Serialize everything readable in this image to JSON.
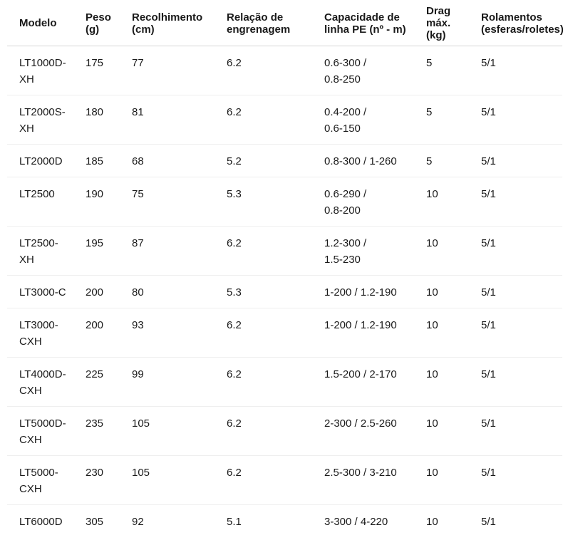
{
  "table": {
    "columns": [
      {
        "label": "Modelo"
      },
      {
        "label": "Peso\n(g)"
      },
      {
        "label": "Recolhimento\n(cm)"
      },
      {
        "label": "Relação de\nengrenagem"
      },
      {
        "label": "Capacidade de\nlinha PE (nº - m)"
      },
      {
        "label": "Drag\nmáx.\n(kg)"
      },
      {
        "label": "Rolamentos\n(esferas/roletes)"
      }
    ],
    "rows": [
      {
        "cells": [
          "LT1000D-\nXH",
          "175",
          "77",
          "6.2",
          "0.6-300 /\n0.8-250",
          "5",
          "5/1"
        ]
      },
      {
        "cells": [
          "LT2000S-\nXH",
          "180",
          "81",
          "6.2",
          "0.4-200 /\n0.6-150",
          "5",
          "5/1"
        ]
      },
      {
        "cells": [
          "LT2000D",
          "185",
          "68",
          "5.2",
          "0.8-300 / 1-260",
          "5",
          "5/1"
        ]
      },
      {
        "cells": [
          "LT2500",
          "190",
          "75",
          "5.3",
          "0.6-290 /\n0.8-200",
          "10",
          "5/1"
        ]
      },
      {
        "cells": [
          "LT2500-\nXH",
          "195",
          "87",
          "6.2",
          "1.2-300 /\n1.5-230",
          "10",
          "5/1"
        ]
      },
      {
        "cells": [
          "LT3000-C",
          "200",
          "80",
          "5.3",
          "1-200 / 1.2-190",
          "10",
          "5/1"
        ]
      },
      {
        "cells": [
          "LT3000-\nCXH",
          "200",
          "93",
          "6.2",
          "1-200 / 1.2-190",
          "10",
          "5/1"
        ]
      },
      {
        "cells": [
          "LT4000D-\nCXH",
          "225",
          "99",
          "6.2",
          "1.5-200 / 2-170",
          "10",
          "5/1"
        ]
      },
      {
        "cells": [
          "LT5000D-\nCXH",
          "235",
          "105",
          "6.2",
          "2-300 / 2.5-260",
          "10",
          "5/1"
        ]
      },
      {
        "cells": [
          "LT5000-\nCXH",
          "230",
          "105",
          "6.2",
          "2.5-300 / 3-210",
          "10",
          "5/1"
        ]
      },
      {
        "cells": [
          "LT6000D",
          "305",
          "92",
          "5.1",
          "3-300 / 4-220",
          "10",
          "5/1"
        ]
      }
    ]
  },
  "chart_data": {
    "type": "table",
    "title": "",
    "columns": [
      "Modelo",
      "Peso (g)",
      "Recolhimento (cm)",
      "Relação de engrenagem",
      "Capacidade de linha PE (nº - m)",
      "Drag máx. (kg)",
      "Rolamentos (esferas/roletes)"
    ],
    "rows": [
      [
        "LT1000D-XH",
        175,
        77,
        6.2,
        "0.6-300 / 0.8-250",
        5,
        "5/1"
      ],
      [
        "LT2000S-XH",
        180,
        81,
        6.2,
        "0.4-200 / 0.6-150",
        5,
        "5/1"
      ],
      [
        "LT2000D",
        185,
        68,
        5.2,
        "0.8-300 / 1-260",
        5,
        "5/1"
      ],
      [
        "LT2500",
        190,
        75,
        5.3,
        "0.6-290 / 0.8-200",
        10,
        "5/1"
      ],
      [
        "LT2500-XH",
        195,
        87,
        6.2,
        "1.2-300 / 1.5-230",
        10,
        "5/1"
      ],
      [
        "LT3000-C",
        200,
        80,
        5.3,
        "1-200 / 1.2-190",
        10,
        "5/1"
      ],
      [
        "LT3000-CXH",
        200,
        93,
        6.2,
        "1-200 / 1.2-190",
        10,
        "5/1"
      ],
      [
        "LT4000D-CXH",
        225,
        99,
        6.2,
        "1.5-200 / 2-170",
        10,
        "5/1"
      ],
      [
        "LT5000D-CXH",
        235,
        105,
        6.2,
        "2-300 / 2.5-260",
        10,
        "5/1"
      ],
      [
        "LT5000-CXH",
        230,
        105,
        6.2,
        "2.5-300 / 3-210",
        10,
        "5/1"
      ],
      [
        "LT6000D",
        305,
        92,
        5.1,
        "3-300 / 4-220",
        10,
        "5/1"
      ]
    ]
  },
  "colors": {
    "text": "#1a1a1a",
    "header_border": "#d6d6d6",
    "row_border": "#efefef",
    "background": "#ffffff"
  }
}
